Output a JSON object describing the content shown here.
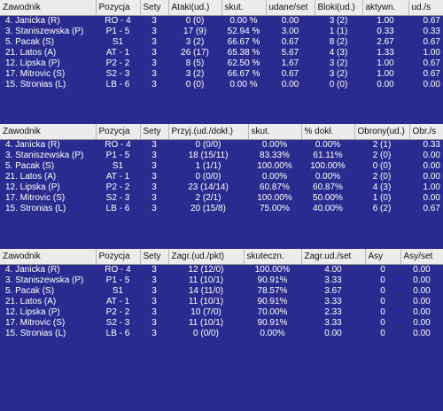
{
  "tables": [
    {
      "headers": [
        "Zawodnik",
        "Pozycja",
        "Sety",
        "Ataki(ud.)",
        "skut.",
        "udane/set",
        "Bloki(ud.)",
        "aktywn.",
        "ud./s"
      ],
      "rows": [
        [
          "4. Janicka (R)",
          "RO - 4",
          "3",
          "0 (0)",
          "0.00 %",
          "0.00",
          "3 (2)",
          "1.00",
          "0.67"
        ],
        [
          "3. Staniszewska (P)",
          "P1 - 5",
          "3",
          "17 (9)",
          "52.94 %",
          "3.00",
          "1 (1)",
          "0.33",
          "0.33"
        ],
        [
          "5. Pacak (S)",
          "S1",
          "3",
          "3 (2)",
          "66.67 %",
          "0.67",
          "8 (2)",
          "2.67",
          "0.67"
        ],
        [
          "21. Latos (A)",
          "AT - 1",
          "3",
          "26 (17)",
          "65.38 %",
          "5.67",
          "4 (3)",
          "1.33",
          "1.00"
        ],
        [
          "12. Lipska (P)",
          "P2 - 2",
          "3",
          "8 (5)",
          "62.50 %",
          "1.67",
          "3 (2)",
          "1.00",
          "0.67"
        ],
        [
          "17. Mitrovic (S)",
          "S2 - 3",
          "3",
          "3 (2)",
          "66.67 %",
          "0.67",
          "3 (2)",
          "1.00",
          "0.67"
        ],
        [
          "15. Stronias (L)",
          "LB - 6",
          "3",
          "0 (0)",
          "0.00 %",
          "0.00",
          "0 (0)",
          "0.00",
          "0.00"
        ]
      ]
    },
    {
      "headers": [
        "Zawodnik",
        "Pozycja",
        "Sety",
        "Przyj.(ud./dokł.)",
        "skut.",
        "% dokł.",
        "Obrony(ud.)",
        "Obr./s"
      ],
      "rows": [
        [
          "4. Janicka (R)",
          "RO - 4",
          "3",
          "0 (0/0)",
          "0.00%",
          "0.00%",
          "2 (1)",
          "0.33"
        ],
        [
          "3. Staniszewska (P)",
          "P1 - 5",
          "3",
          "18 (15/11)",
          "83.33%",
          "61.11%",
          "2 (0)",
          "0.00"
        ],
        [
          "5. Pacak (S)",
          "S1",
          "3",
          "1 (1/1)",
          "100.00%",
          "100.00%",
          "0 (0)",
          "0.00"
        ],
        [
          "21. Latos (A)",
          "AT - 1",
          "3",
          "0 (0/0)",
          "0.00%",
          "0.00%",
          "2 (0)",
          "0.00"
        ],
        [
          "12. Lipska (P)",
          "P2 - 2",
          "3",
          "23 (14/14)",
          "60.87%",
          "60.87%",
          "4 (3)",
          "1.00"
        ],
        [
          "17. Mitrovic (S)",
          "S2 - 3",
          "3",
          "2 (2/1)",
          "100.00%",
          "50.00%",
          "1 (0)",
          "0.00"
        ],
        [
          "15. Stronias (L)",
          "LB - 6",
          "3",
          "20 (15/8)",
          "75.00%",
          "40.00%",
          "6 (2)",
          "0.67"
        ]
      ]
    },
    {
      "headers": [
        "Zawodnik",
        "Pozycja",
        "Sety",
        "Zagr.(ud./pkt)",
        "skuteczn.",
        "Zagr.ud./set",
        "Asy",
        "Asy/set"
      ],
      "rows": [
        [
          "4. Janicka (R)",
          "RO - 4",
          "3",
          "12 (12/0)",
          "100.00%",
          "4.00",
          "0",
          "0.00"
        ],
        [
          "3. Staniszewska (P)",
          "P1 - 5",
          "3",
          "11 (10/1)",
          "90.91%",
          "3.33",
          "0",
          "0.00"
        ],
        [
          "5. Pacak (S)",
          "S1",
          "3",
          "14 (11/0)",
          "78.57%",
          "3.67",
          "0",
          "0.00"
        ],
        [
          "21. Latos (A)",
          "AT - 1",
          "3",
          "11 (10/1)",
          "90.91%",
          "3.33",
          "0",
          "0.00"
        ],
        [
          "12. Lipska (P)",
          "P2 - 2",
          "3",
          "10 (7/0)",
          "70.00%",
          "2.33",
          "0",
          "0.00"
        ],
        [
          "17. Mitrovic (S)",
          "S2 - 3",
          "3",
          "11 (10/1)",
          "90.91%",
          "3.33",
          "0",
          "0.00"
        ],
        [
          "15. Stronias (L)",
          "LB - 6",
          "3",
          "0 (0/0)",
          "0.00%",
          "0.00",
          "0",
          "0.00"
        ]
      ]
    }
  ]
}
